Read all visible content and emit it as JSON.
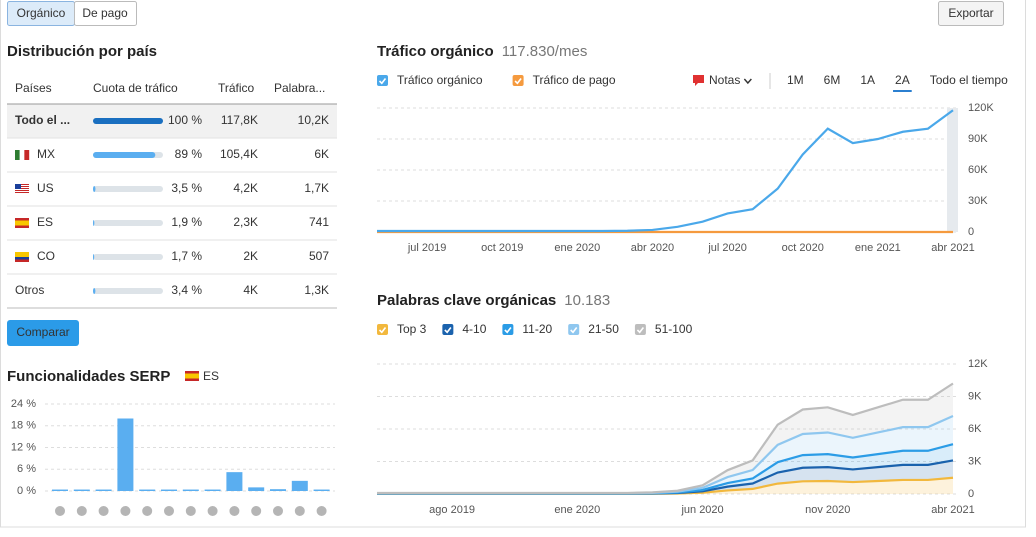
{
  "tabs": [
    "Orgánico",
    "De pago"
  ],
  "export_button": "Exportar",
  "country_distribution": {
    "title": "Distribución por país",
    "headers": [
      "Países",
      "Cuota de tráfico",
      "Tráfico",
      "Palabra..."
    ],
    "rows": [
      {
        "country": "Todo el ...",
        "share": 100,
        "share_label": "100 %",
        "traffic": "117,8K",
        "keywords": "10,2K"
      },
      {
        "country": "MX",
        "share": 89,
        "share_label": "89 %",
        "traffic": "105,4K",
        "keywords": "6K"
      },
      {
        "country": "US",
        "share": 3.5,
        "share_label": "3,5 %",
        "traffic": "4,2K",
        "keywords": "1,7K"
      },
      {
        "country": "ES",
        "share": 1.9,
        "share_label": "1,9 %",
        "traffic": "2,3K",
        "keywords": "741"
      },
      {
        "country": "CO",
        "share": 1.7,
        "share_label": "1,7 %",
        "traffic": "2K",
        "keywords": "507"
      },
      {
        "country": "Otros",
        "share": 3.4,
        "share_label": "3,4 %",
        "traffic": "4K",
        "keywords": "1,3K"
      }
    ],
    "compare_button": "Comparar"
  },
  "chart_data": [
    {
      "type": "bar",
      "title": "Funcionalidades SERP",
      "flag_label": "ES",
      "values": [
        0.4,
        0.4,
        0.4,
        20,
        0.4,
        0.4,
        0.4,
        0.4,
        5.2,
        1,
        0.5,
        2.8,
        0.4
      ],
      "color": "#5aaef0",
      "ylim": [
        0,
        24
      ],
      "yticks": [
        {
          "value": 0,
          "label": "0 %"
        },
        {
          "value": 6,
          "label": "6 %"
        },
        {
          "value": 12,
          "label": "12 %"
        },
        {
          "value": 18,
          "label": "18 %"
        },
        {
          "value": 24,
          "label": "24 %"
        }
      ],
      "grid": true
    },
    {
      "type": "line",
      "title": "Tráfico orgánico",
      "subtitle": "117.830/mes",
      "categories": [
        null,
        null,
        "jul 2019",
        null,
        null,
        "oct 2019",
        null,
        null,
        "ene 2020",
        null,
        null,
        "abr 2020",
        null,
        null,
        "jul 2020",
        null,
        null,
        "oct 2020",
        null,
        null,
        "ene 2021",
        null,
        null,
        "abr 2021"
      ],
      "series": [
        {
          "name": "Tráfico orgánico",
          "color": "#4aa8ea",
          "values": [
            1000,
            1000,
            1000,
            1000,
            1000,
            1000,
            1000,
            1000,
            1000,
            1000,
            1200,
            2000,
            5000,
            10000,
            18000,
            22000,
            42000,
            75000,
            100000,
            86000,
            90000,
            97000,
            100000,
            117830
          ]
        },
        {
          "name": "Tráfico de pago",
          "color": "#f59a3e",
          "values": [
            0,
            0,
            0,
            0,
            0,
            0,
            0,
            0,
            0,
            0,
            0,
            0,
            0,
            0,
            0,
            0,
            0,
            0,
            0,
            0,
            0,
            0,
            0,
            0
          ]
        }
      ],
      "ylim": [
        0,
        120000
      ],
      "yticks": [
        0,
        {
          "value": 30000,
          "label": "30K"
        },
        {
          "value": 60000,
          "label": "60K"
        },
        {
          "value": 90000,
          "label": "90K"
        },
        {
          "value": 120000,
          "label": "120K"
        }
      ],
      "grid": true,
      "notes_label": "Notas",
      "ranges": [
        "1M",
        "6M",
        "1A",
        "2A",
        "Todo el tiempo"
      ],
      "selected_range_index": 3
    },
    {
      "type": "stacked-area",
      "title": "Palabras clave orgánicas",
      "subtitle": "10.183",
      "categories": [
        null,
        null,
        null,
        "ago 2019",
        null,
        null,
        null,
        null,
        "ene 2020",
        null,
        null,
        null,
        null,
        "jun 2020",
        null,
        null,
        null,
        null,
        "nov 2020",
        null,
        null,
        null,
        null,
        "abr 2021"
      ],
      "series": [
        {
          "name": "Top 3",
          "color": "#f2b83d",
          "values": [
            15,
            15,
            15,
            15,
            15,
            15,
            15,
            15,
            15,
            15,
            15,
            20,
            45,
            120,
            330,
            470,
            960,
            1170,
            1200,
            1100,
            1200,
            1300,
            1300,
            1500
          ]
        },
        {
          "name": "4-10",
          "color": "#1a62ad",
          "values": [
            15,
            15,
            15,
            15,
            15,
            15,
            15,
            15,
            15,
            15,
            15,
            25,
            50,
            130,
            350,
            500,
            1020,
            1250,
            1280,
            1170,
            1280,
            1390,
            1390,
            1600
          ]
        },
        {
          "name": "11-20",
          "color": "#2b9ce6",
          "values": [
            15,
            15,
            15,
            15,
            15,
            15,
            15,
            15,
            15,
            15,
            15,
            20,
            45,
            120,
            330,
            460,
            960,
            1170,
            1200,
            1100,
            1200,
            1300,
            1300,
            1500
          ]
        },
        {
          "name": "21-50",
          "color": "#8fc7ef",
          "values": [
            25,
            25,
            25,
            25,
            25,
            25,
            25,
            25,
            25,
            25,
            25,
            40,
            75,
            200,
            550,
            780,
            1600,
            1950,
            2000,
            1820,
            2000,
            2180,
            2180,
            2600
          ]
        },
        {
          "name": "51-100",
          "color": "#bdbdbd",
          "values": [
            30,
            30,
            30,
            30,
            30,
            30,
            30,
            30,
            30,
            30,
            30,
            45,
            85,
            230,
            640,
            890,
            1860,
            2260,
            2320,
            2110,
            2320,
            2530,
            2530,
            3000
          ]
        }
      ],
      "ylim": [
        0,
        12000
      ],
      "yticks": [
        0,
        {
          "value": 3000,
          "label": "3K"
        },
        {
          "value": 6000,
          "label": "6K"
        },
        {
          "value": 9000,
          "label": "9K"
        },
        {
          "value": 12000,
          "label": "12K"
        }
      ],
      "grid": true
    }
  ]
}
